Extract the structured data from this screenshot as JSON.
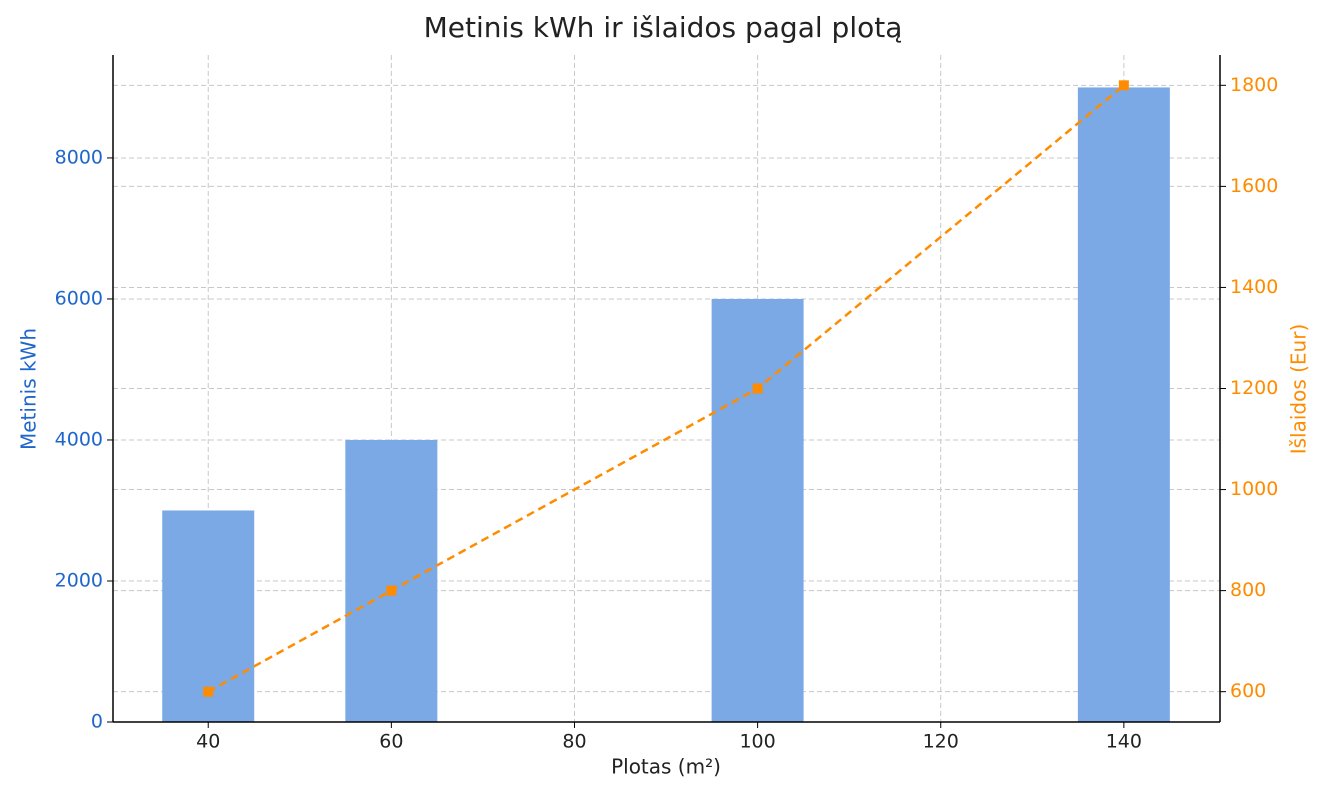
{
  "chart_data": {
    "type": "bar",
    "title": "Metinis kWh ir išlaidos pagal plotą",
    "xlabel": "Plotas (m²)",
    "ylabel": "Metinis kWh",
    "y2label": "Išlaidos (Eur)",
    "x": [
      40,
      60,
      100,
      140
    ],
    "series": [
      {
        "type": "bar",
        "color": "#7aa9e6",
        "values": [
          3000,
          4000,
          6000,
          9000
        ]
      },
      {
        "type": "line",
        "axis": "y2",
        "color": "#ff8c00",
        "values": [
          600,
          800,
          1200,
          1800
        ]
      }
    ],
    "xlim": [
      29.6,
      150.5
    ],
    "xticks": [
      40,
      60,
      80,
      100,
      120,
      140
    ],
    "ylim": [
      0,
      9460
    ],
    "yticks": [
      0,
      2000,
      4000,
      6000,
      8000
    ],
    "y2lim": [
      540,
      1860
    ],
    "y2ticks": [
      600,
      800,
      1000,
      1200,
      1400,
      1600,
      1800
    ],
    "ycolor": "#1f66cc",
    "y2color": "#ff8c00",
    "grid": true
  }
}
